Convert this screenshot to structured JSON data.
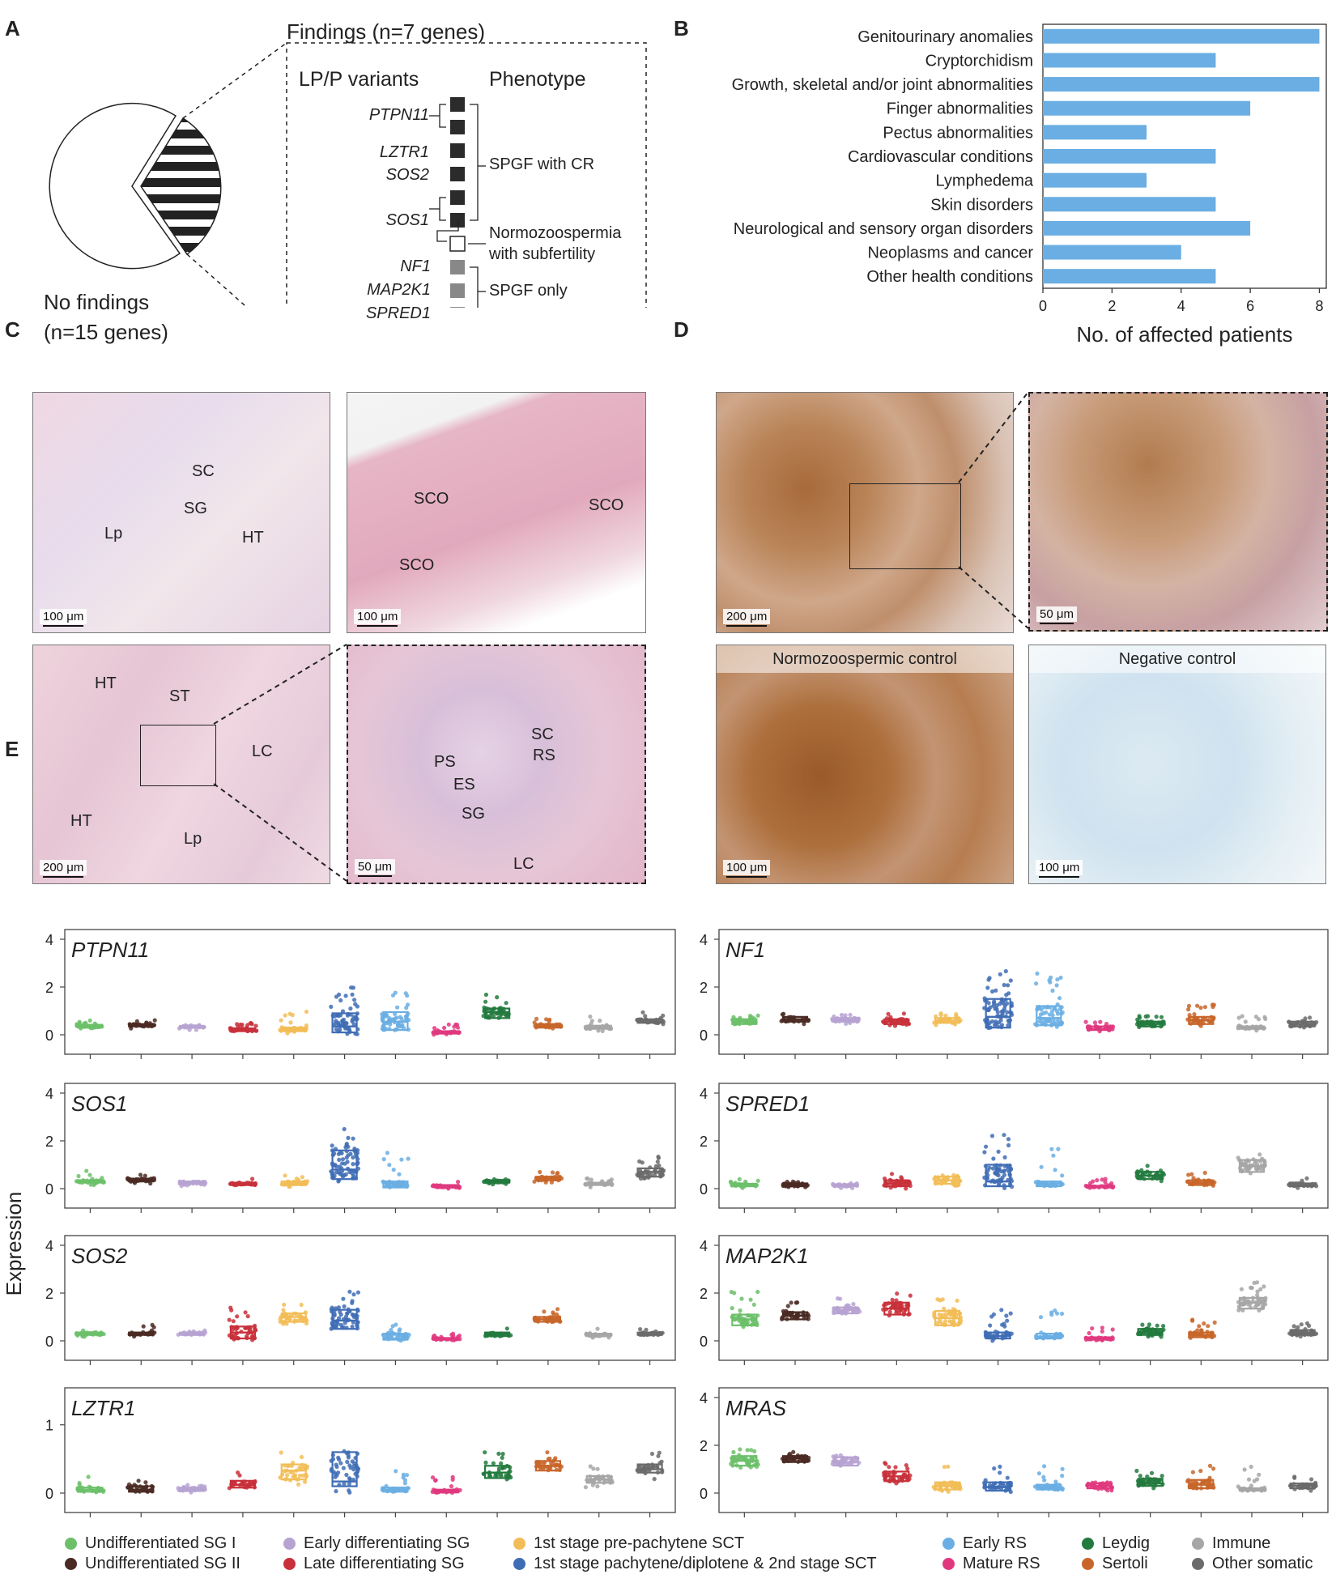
{
  "panel_letters": {
    "a": "A",
    "b": "B",
    "c": "C",
    "d": "D",
    "e": "E"
  },
  "panel_a": {
    "pie_no_findings_line1": "No findings",
    "pie_no_findings_line2": "(n=15 genes)",
    "box_title": "Findings (n=7 genes)",
    "col_variants": "LP/P variants",
    "col_phenotype": "Phenotype",
    "genes": [
      "PTPN11",
      "LZTR1",
      "SOS2",
      "SOS1",
      "NF1",
      "MAP2K1",
      "SPRED1"
    ],
    "phenotype_spgf_cr": "SPGF with CR",
    "phenotype_normo_line1": "Normozoospermia",
    "phenotype_normo_line2": "with subfertility",
    "phenotype_spgf_only": "SPGF only"
  },
  "chart_data": [
    {
      "type": "bar",
      "orientation": "horizontal",
      "categories": [
        "Genitourinary anomalies",
        "Cryptorchidism",
        "Growth, skeletal and/or joint abnormalities",
        "Finger abnormalities",
        "Pectus abnormalities",
        "Cardiovascular conditions",
        "Lymphedema",
        "Skin disorders",
        "Neurological and sensory organ disorders",
        "Neoplasms and cancer",
        "Other health conditions"
      ],
      "values": [
        8,
        5,
        8,
        6,
        3,
        5,
        3,
        5,
        6,
        4,
        5
      ],
      "xlabel": "No. of affected patients",
      "xlim": [
        0,
        8.2
      ],
      "xticks": [
        0,
        2,
        4,
        6,
        8
      ],
      "color": "#6aaee3"
    },
    {
      "type": "box-strip",
      "ylabel": "Expression",
      "cell_types": [
        "Undifferentiated SG I",
        "Undifferentiated SG II",
        "Early differentiating SG",
        "Late differentiating SG",
        "1st stage pre-pachytene SCT",
        "1st stage pachytene/diplotene & 2nd stage SCT",
        "Early RS",
        "Mature RS",
        "Leydig",
        "Sertoli",
        "Immune",
        "Other somatic"
      ],
      "colors": [
        "#6cc06a",
        "#4a2a22",
        "#b7a3d2",
        "#c8303a",
        "#f2bd57",
        "#3f6db5",
        "#6aaee3",
        "#e0387f",
        "#237a3e",
        "#c8662a",
        "#a6a6a6",
        "#6b6b6b"
      ],
      "genes": [
        {
          "name": "PTPN11",
          "yticks": [
            0,
            2,
            4
          ],
          "ymax": 4,
          "median": [
            0.35,
            0.4,
            0.33,
            0.2,
            0.22,
            0.35,
            0.55,
            0.1,
            0.95,
            0.37,
            0.3,
            0.55
          ],
          "q1": [
            0.3,
            0.35,
            0.3,
            0.15,
            0.15,
            0.1,
            0.2,
            0.05,
            0.7,
            0.3,
            0.25,
            0.5
          ],
          "q3": [
            0.42,
            0.45,
            0.37,
            0.27,
            0.3,
            0.9,
            0.95,
            0.15,
            1.1,
            0.45,
            0.38,
            0.65
          ],
          "max": [
            0.6,
            0.7,
            0.45,
            0.6,
            1.0,
            2.2,
            2.05,
            0.45,
            1.75,
            0.7,
            0.8,
            0.95
          ]
        },
        {
          "name": "NF1",
          "yticks": [
            0,
            2,
            4
          ],
          "ymax": 4,
          "median": [
            0.55,
            0.65,
            0.6,
            0.55,
            0.6,
            0.75,
            0.7,
            0.25,
            0.45,
            0.6,
            0.3,
            0.45
          ],
          "q1": [
            0.45,
            0.55,
            0.55,
            0.45,
            0.5,
            0.3,
            0.4,
            0.2,
            0.35,
            0.45,
            0.25,
            0.35
          ],
          "q3": [
            0.65,
            0.75,
            0.7,
            0.65,
            0.7,
            1.5,
            1.2,
            0.35,
            0.55,
            0.75,
            0.35,
            0.55
          ],
          "max": [
            0.85,
            0.9,
            0.85,
            0.9,
            0.9,
            2.7,
            2.6,
            0.55,
            0.85,
            1.3,
            0.8,
            0.8
          ]
        },
        {
          "name": "SOS1",
          "yticks": [
            0,
            2,
            4
          ],
          "ymax": 4,
          "median": [
            0.3,
            0.35,
            0.25,
            0.2,
            0.2,
            0.8,
            0.1,
            0.1,
            0.3,
            0.45,
            0.2,
            0.7
          ],
          "q1": [
            0.25,
            0.3,
            0.2,
            0.15,
            0.15,
            0.4,
            0.05,
            0.05,
            0.25,
            0.35,
            0.15,
            0.5
          ],
          "q3": [
            0.35,
            0.42,
            0.3,
            0.25,
            0.3,
            1.6,
            0.3,
            0.15,
            0.35,
            0.5,
            0.25,
            0.85
          ],
          "max": [
            0.8,
            0.6,
            0.45,
            0.5,
            0.55,
            2.5,
            1.5,
            0.3,
            0.5,
            0.7,
            0.45,
            1.4
          ]
        },
        {
          "name": "SPRED1",
          "yticks": [
            0,
            2,
            4
          ],
          "ymax": 4,
          "median": [
            0.15,
            0.15,
            0.12,
            0.2,
            0.35,
            0.3,
            0.2,
            0.08,
            0.55,
            0.25,
            0.95,
            0.15
          ],
          "q1": [
            0.1,
            0.1,
            0.1,
            0.1,
            0.2,
            0.1,
            0.1,
            0.05,
            0.4,
            0.15,
            0.7,
            0.1
          ],
          "q3": [
            0.2,
            0.22,
            0.17,
            0.35,
            0.5,
            1.0,
            0.3,
            0.12,
            0.7,
            0.35,
            1.2,
            0.22
          ],
          "max": [
            0.4,
            0.35,
            0.3,
            0.7,
            0.75,
            2.35,
            2.1,
            0.45,
            1.0,
            0.7,
            1.45,
            0.6
          ]
        },
        {
          "name": "SOS2",
          "yticks": [
            0,
            2,
            4
          ],
          "ymax": 4,
          "median": [
            0.3,
            0.3,
            0.3,
            0.35,
            1.0,
            0.85,
            0.1,
            0.08,
            0.3,
            0.9,
            0.25,
            0.3
          ],
          "q1": [
            0.25,
            0.25,
            0.25,
            0.1,
            0.8,
            0.5,
            0.05,
            0.05,
            0.2,
            0.8,
            0.2,
            0.25
          ],
          "q3": [
            0.35,
            0.35,
            0.35,
            0.6,
            1.15,
            1.3,
            0.3,
            0.12,
            0.35,
            1.0,
            0.3,
            0.35
          ],
          "max": [
            0.5,
            0.7,
            0.5,
            1.4,
            1.55,
            2.3,
            0.7,
            0.3,
            0.6,
            1.35,
            0.55,
            0.55
          ]
        },
        {
          "name": "MAP2K1",
          "yticks": [
            0,
            2,
            4
          ],
          "ymax": 4,
          "median": [
            0.9,
            1.05,
            1.3,
            1.35,
            0.95,
            0.2,
            0.18,
            0.1,
            0.35,
            0.25,
            1.6,
            0.35
          ],
          "q1": [
            0.65,
            0.9,
            1.15,
            1.1,
            0.65,
            0.1,
            0.1,
            0.05,
            0.25,
            0.15,
            1.35,
            0.25
          ],
          "q3": [
            1.1,
            1.2,
            1.4,
            1.6,
            1.25,
            0.35,
            0.3,
            0.15,
            0.5,
            0.35,
            1.8,
            0.45
          ],
          "max": [
            2.1,
            1.65,
            1.8,
            2.05,
            1.75,
            1.3,
            1.4,
            0.55,
            0.8,
            1.25,
            2.45,
            0.75
          ]
        },
        {
          "name": "LZTR1",
          "yticks": [
            0,
            1
          ],
          "ymax": 1.4,
          "median": [
            0.05,
            0.05,
            0.05,
            0.12,
            0.33,
            0.17,
            0.05,
            0.03,
            0.3,
            0.4,
            0.2,
            0.35
          ],
          "q1": [
            0.02,
            0.02,
            0.03,
            0.08,
            0.2,
            0.1,
            0.02,
            0.01,
            0.22,
            0.33,
            0.15,
            0.3
          ],
          "q3": [
            0.08,
            0.1,
            0.08,
            0.18,
            0.42,
            0.6,
            0.08,
            0.05,
            0.4,
            0.47,
            0.25,
            0.42
          ],
          "max": [
            0.3,
            0.25,
            0.12,
            0.35,
            0.65,
            0.62,
            0.4,
            0.28,
            0.62,
            0.65,
            0.4,
            0.6
          ]
        },
        {
          "name": "MRAS",
          "yticks": [
            0,
            2,
            4
          ],
          "ymax": 4,
          "median": [
            1.35,
            1.45,
            1.3,
            0.7,
            0.3,
            0.25,
            0.25,
            0.3,
            0.4,
            0.35,
            0.15,
            0.3
          ],
          "q1": [
            1.15,
            1.3,
            1.15,
            0.5,
            0.15,
            0.1,
            0.15,
            0.2,
            0.3,
            0.2,
            0.1,
            0.2
          ],
          "q3": [
            1.55,
            1.55,
            1.5,
            0.9,
            0.45,
            0.45,
            0.35,
            0.4,
            0.6,
            0.55,
            0.2,
            0.4
          ],
          "max": [
            1.95,
            1.75,
            1.75,
            1.45,
            1.15,
            1.35,
            1.2,
            0.5,
            0.95,
            1.15,
            1.15,
            0.7
          ]
        }
      ]
    }
  ],
  "panel_c": {
    "img1_labels": [
      "SC",
      "SG",
      "HT",
      "Lp"
    ],
    "img1_scale": "100 μm",
    "img2_labels": [
      "SCO",
      "SCO",
      "SCO"
    ],
    "img2_scale": "100 μm",
    "img3_labels": [
      "HT",
      "ST",
      "LC",
      "HT",
      "Lp"
    ],
    "img3_scale": "200 μm",
    "img4_labels": [
      "SC",
      "RS",
      "PS",
      "ES",
      "SG",
      "LC"
    ],
    "img4_scale": "50 μm"
  },
  "panel_d": {
    "img1_scale": "200 μm",
    "img2_scale": "50 μm",
    "img3_caption": "Normozoospermic control",
    "img3_scale": "100 μm",
    "img4_caption": "Negative control",
    "img4_scale": "100 μm"
  }
}
